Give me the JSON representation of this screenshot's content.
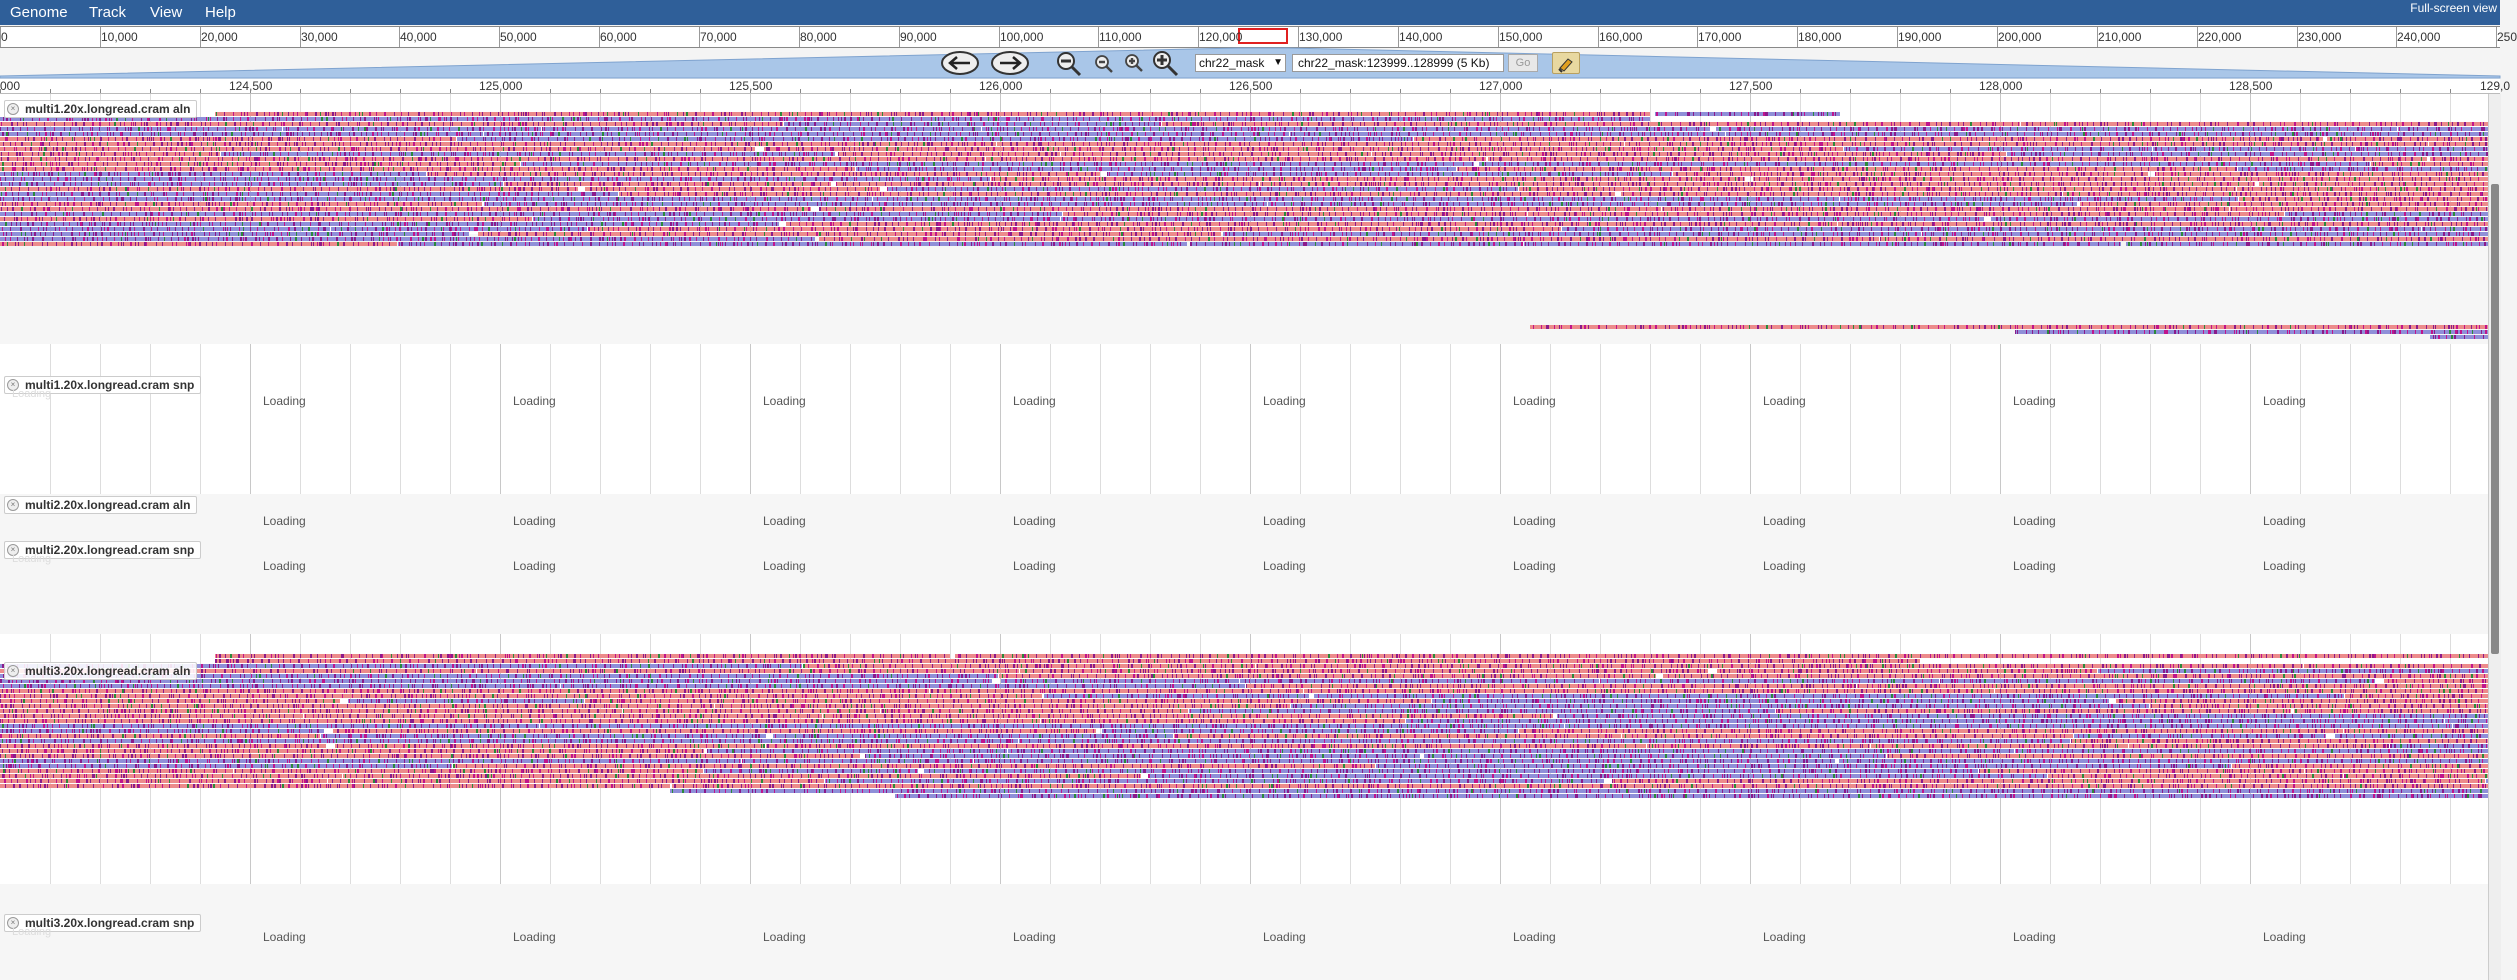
{
  "menu": {
    "items": [
      "Genome",
      "Track",
      "View",
      "Help"
    ],
    "fullscreen_label": "Full-screen view"
  },
  "overview": {
    "ticks": [
      "0",
      "10,000",
      "20,000",
      "30,000",
      "40,000",
      "50,000",
      "60,000",
      "70,000",
      "80,000",
      "90,000",
      "100,000",
      "110,000",
      "120,000",
      "130,000",
      "140,000",
      "150,000",
      "160,000",
      "170,000",
      "180,000",
      "190,000",
      "200,000",
      "210,000",
      "220,000",
      "230,000",
      "240,000",
      "250"
    ]
  },
  "nav": {
    "chrom": "chr22_mask",
    "location": "chr22_mask:123999..128999 (5 Kb)",
    "go_label": "Go"
  },
  "detail_ruler": {
    "labels": [
      "000",
      "124,500",
      "125,000",
      "125,500",
      "126,000",
      "126,500",
      "127,000",
      "127,500",
      "128,000",
      "128,500",
      "129,0"
    ]
  },
  "tracks": [
    {
      "label": "multi1.20x.longread.cram aln"
    },
    {
      "label": "multi1.20x.longread.cram snp"
    },
    {
      "label": "multi2.20x.longread.cram aln"
    },
    {
      "label": "multi2.20x.longread.cram snp"
    },
    {
      "label": "multi3.20x.longread.cram aln"
    },
    {
      "label": "multi3.20x.longread.cram snp"
    }
  ],
  "loading_text": "Loading",
  "colors": {
    "menu_bg": "#2f5f99",
    "read_forward": "#ec8b8b",
    "read_reverse": "#8f8fd8",
    "mismatch_purple": "#8b1a8b",
    "mismatch_magenta": "#c0148c",
    "highlight_red": "#e02020"
  },
  "icons": [
    "left-arrow-icon",
    "right-arrow-icon",
    "zoom-out-large-icon",
    "zoom-out-small-icon",
    "zoom-in-small-icon",
    "zoom-in-large-icon",
    "highlighter-icon",
    "close-icon",
    "chevron-down-icon"
  ]
}
